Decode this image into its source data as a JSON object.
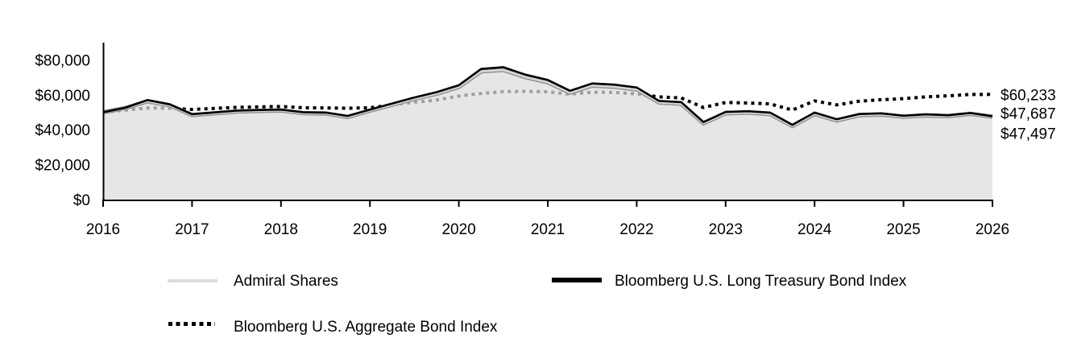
{
  "chart": {
    "y_axis": {
      "tick_values": [
        0,
        20000,
        40000,
        60000,
        80000
      ],
      "tick_labels": [
        "$0",
        "$20,000",
        "$40,000",
        "$60,000",
        "$80,000"
      ]
    },
    "x_axis": {
      "years": [
        2016,
        2017,
        2018,
        2019,
        2020,
        2021,
        2022,
        2023,
        2024,
        2025,
        2026
      ]
    },
    "end_labels": {
      "aggregate": "$60,233",
      "long_treasury": "$47,687",
      "admiral": "$47,497"
    }
  },
  "chart_data": {
    "type": "line",
    "title": "",
    "xlabel": "",
    "ylabel": "",
    "xlim": [
      2016,
      2026
    ],
    "ylim": [
      0,
      80000
    ],
    "grid": false,
    "legend_position": "bottom",
    "x": [
      2016.0,
      2016.25,
      2016.5,
      2016.75,
      2017.0,
      2017.25,
      2017.5,
      2017.75,
      2018.0,
      2018.25,
      2018.5,
      2018.75,
      2019.0,
      2019.25,
      2019.5,
      2019.75,
      2020.0,
      2020.25,
      2020.5,
      2020.75,
      2021.0,
      2021.25,
      2021.5,
      2021.75,
      2022.0,
      2022.25,
      2022.5,
      2022.75,
      2023.0,
      2023.25,
      2023.5,
      2023.75,
      2024.0,
      2024.25,
      2024.5,
      2024.75,
      2025.0,
      2025.25,
      2025.5,
      2025.75,
      2026.0
    ],
    "series": [
      {
        "name": "Admiral Shares",
        "style": "light-gray-line-with-area-fill",
        "end_value": 47497,
        "values": [
          50000,
          52400,
          56300,
          54000,
          48400,
          49400,
          50400,
          50800,
          51000,
          49500,
          49300,
          47300,
          50900,
          54300,
          57700,
          60600,
          64500,
          73400,
          74300,
          70100,
          67200,
          61200,
          65300,
          64600,
          63100,
          55600,
          54900,
          43700,
          49400,
          49800,
          49000,
          42100,
          49000,
          45300,
          48300,
          48700,
          47400,
          48200,
          47800,
          49100,
          47497
        ]
      },
      {
        "name": "Bloomberg U.S. Long Treasury Bond Index",
        "style": "solid-black-line",
        "end_value": 47687,
        "values": [
          50000,
          52600,
          57000,
          54500,
          48900,
          49900,
          50900,
          51300,
          51500,
          50000,
          49800,
          47900,
          51500,
          55000,
          58500,
          61500,
          65500,
          74800,
          75800,
          71500,
          68500,
          62300,
          66500,
          65800,
          64200,
          56500,
          55800,
          44400,
          50200,
          50600,
          49800,
          42800,
          49800,
          46000,
          49000,
          49400,
          48000,
          48800,
          48300,
          49600,
          47687
        ]
      },
      {
        "name": "Bloomberg U.S. Aggregate Bond Index",
        "style": "dotted-black-line",
        "end_value": 60233,
        "values": [
          50000,
          51200,
          52500,
          52300,
          51600,
          52200,
          52800,
          53100,
          53300,
          52600,
          52500,
          52300,
          52600,
          54200,
          55800,
          57000,
          59300,
          60800,
          61800,
          62000,
          61700,
          60300,
          61500,
          61400,
          60500,
          58800,
          58200,
          52700,
          55600,
          55300,
          54800,
          51300,
          56500,
          54200,
          56300,
          57200,
          57800,
          58800,
          59400,
          60200,
          60233
        ]
      }
    ]
  },
  "legend": {
    "items": [
      {
        "label": "Admiral Shares",
        "swatch": "light-gray-solid"
      },
      {
        "label": "Bloomberg U.S. Long Treasury Bond Index",
        "swatch": "black-solid"
      },
      {
        "label": "Bloomberg U.S. Aggregate Bond Index",
        "swatch": "black-dotted"
      }
    ]
  },
  "colors": {
    "area_fill": "rgba(221,221,221,0.72)",
    "admiral_line": "#d6d6d6",
    "admiral_edge": "#909090",
    "treasury_line": "#000000",
    "aggregate_line": "#000000",
    "axis": "#000000"
  }
}
